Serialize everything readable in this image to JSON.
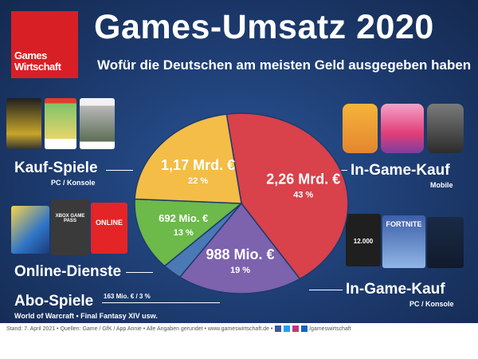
{
  "header": {
    "logo_line1": "Games",
    "logo_line2": "Wirtschaft",
    "title": "Games-Umsatz 2020",
    "subtitle": "Wofür die Deutschen am meisten Geld ausgegeben haben"
  },
  "categories": {
    "kauf": {
      "label": "Kauf-Spiele",
      "sub": "PC / Konsole"
    },
    "online": {
      "label": "Online-Dienste"
    },
    "abo": {
      "label": "Abo-Spiele",
      "sub": "World of Warcraft • Final Fantasy XIV usw.",
      "value_note": "163 Mio. € / 3 %"
    },
    "ingame_mobile": {
      "label": "In-Game-Kauf",
      "sub": "Mobile"
    },
    "ingame_pc": {
      "label": "In-Game-Kauf",
      "sub": "PC / Konsole"
    }
  },
  "thumbnails": {
    "online_cards": [
      "XBOX GAME PASS",
      "ONLINE"
    ],
    "pc_cards": [
      "12.000",
      "FORTNITE"
    ]
  },
  "footer": {
    "text": "Stand: 7. April 2021 • Quellen: Game / GfK / App Annie • Alle Angaben gerundet • www.gameswirtschaft.de •",
    "handle": "/gameswirtschaft"
  },
  "chart_data": {
    "type": "pie",
    "title": "Games-Umsatz 2020",
    "subtitle": "Wofür die Deutschen am meisten Geld ausgegeben haben",
    "series": [
      {
        "name": "In-Game-Kauf Mobile",
        "label": "2,26 Mrd. €",
        "percent_label": "43 %",
        "value": 43,
        "color": "#d9414b"
      },
      {
        "name": "In-Game-Kauf PC / Konsole",
        "label": "988 Mio. €",
        "percent_label": "19 %",
        "value": 19,
        "color": "#7d62ad"
      },
      {
        "name": "Abo-Spiele",
        "label": "163 Mio. €",
        "percent_label": "3 %",
        "value": 3,
        "color": "#4a79b6"
      },
      {
        "name": "Online-Dienste",
        "label": "692 Mio. €",
        "percent_label": "13 %",
        "value": 13,
        "color": "#6db94a"
      },
      {
        "name": "Kauf-Spiele",
        "label": "1,17 Mrd. €",
        "percent_label": "22 %",
        "value": 22,
        "color": "#f4bd47"
      }
    ]
  }
}
